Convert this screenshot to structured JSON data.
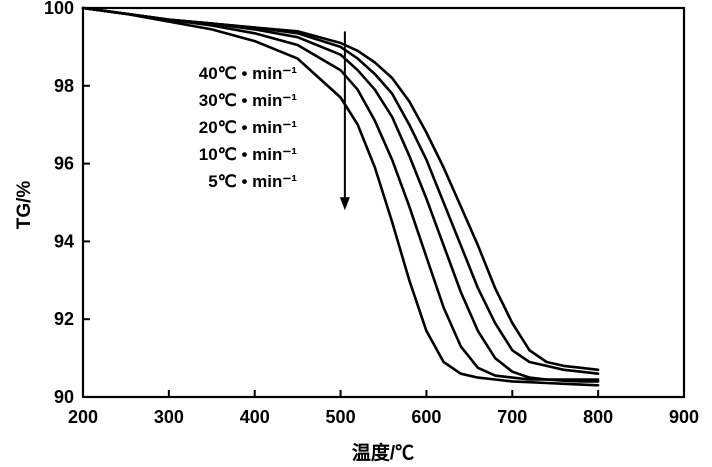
{
  "chart_data": {
    "type": "line",
    "title": "",
    "xlabel": "温度/℃",
    "ylabel": "TG/%",
    "xlim": [
      200,
      900
    ],
    "ylim": [
      90,
      100
    ],
    "x_ticks": [
      200,
      300,
      400,
      500,
      600,
      700,
      800,
      900
    ],
    "y_ticks": [
      90,
      92,
      94,
      96,
      98,
      100
    ],
    "grid": false,
    "legend_position": "center",
    "legend_labels": [
      "40℃ • min⁻¹",
      "30℃ • min⁻¹",
      "20℃ • min⁻¹",
      "10℃ • min⁻¹",
      "5℃ • min⁻¹"
    ],
    "annotation_arrow": {
      "x": 505,
      "y_from": 99.4,
      "y_to": 94.8
    },
    "series": [
      {
        "x": [
          200,
          250,
          300,
          350,
          400,
          450,
          500,
          520,
          540,
          560,
          580,
          600,
          620,
          640,
          660,
          680,
          700,
          720,
          740,
          760,
          780,
          800
        ],
        "y": [
          100,
          99.85,
          99.7,
          99.6,
          99.5,
          99.4,
          99.1,
          98.9,
          98.6,
          98.2,
          97.6,
          96.8,
          95.9,
          94.9,
          93.9,
          92.8,
          91.9,
          91.2,
          90.9,
          90.8,
          90.75,
          90.7
        ]
      },
      {
        "x": [
          200,
          250,
          300,
          350,
          400,
          450,
          500,
          520,
          540,
          560,
          580,
          600,
          620,
          640,
          660,
          680,
          700,
          720,
          740,
          760,
          780,
          800
        ],
        "y": [
          100,
          99.85,
          99.7,
          99.6,
          99.5,
          99.35,
          99.0,
          98.7,
          98.3,
          97.8,
          97.0,
          96.1,
          95.0,
          93.9,
          92.8,
          91.9,
          91.2,
          90.9,
          90.8,
          90.7,
          90.65,
          90.6
        ]
      },
      {
        "x": [
          200,
          250,
          300,
          350,
          400,
          450,
          500,
          520,
          540,
          560,
          580,
          600,
          620,
          640,
          660,
          680,
          700,
          720,
          740,
          760,
          780,
          800
        ],
        "y": [
          100,
          99.85,
          99.7,
          99.6,
          99.45,
          99.25,
          98.8,
          98.4,
          97.9,
          97.2,
          96.2,
          95.1,
          93.9,
          92.7,
          91.7,
          91.0,
          90.65,
          90.5,
          90.45,
          90.42,
          90.4,
          90.4
        ]
      },
      {
        "x": [
          200,
          250,
          300,
          350,
          400,
          450,
          500,
          520,
          540,
          560,
          580,
          600,
          620,
          640,
          660,
          680,
          700,
          720,
          740,
          760,
          780,
          800
        ],
        "y": [
          100,
          99.85,
          99.7,
          99.55,
          99.35,
          99.05,
          98.4,
          97.9,
          97.1,
          96.1,
          94.9,
          93.6,
          92.3,
          91.3,
          90.75,
          90.55,
          90.5,
          90.45,
          90.45,
          90.45,
          90.45,
          90.45
        ]
      },
      {
        "x": [
          200,
          250,
          300,
          350,
          400,
          450,
          500,
          520,
          540,
          560,
          580,
          600,
          620,
          640,
          660,
          680,
          700,
          720,
          740,
          760,
          780,
          800
        ],
        "y": [
          100,
          99.85,
          99.65,
          99.45,
          99.15,
          98.7,
          97.7,
          97.0,
          95.9,
          94.5,
          93.0,
          91.7,
          90.9,
          90.6,
          90.5,
          90.45,
          90.4,
          90.38,
          90.36,
          90.34,
          90.32,
          90.3
        ]
      }
    ]
  }
}
